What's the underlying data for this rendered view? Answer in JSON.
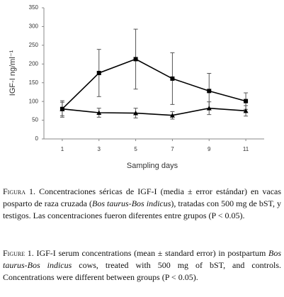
{
  "chart_data": {
    "type": "line",
    "y_label": "IGF-I ng/ml⁻¹",
    "x_label": "Sampling days",
    "x": [
      1,
      3,
      5,
      7,
      9,
      11
    ],
    "xlim": [
      0,
      12
    ],
    "xticks": [
      1,
      3,
      5,
      7,
      9,
      11
    ],
    "ylim": [
      0,
      350
    ],
    "yticks": [
      0,
      50,
      100,
      150,
      200,
      250,
      300,
      350
    ],
    "series": [
      {
        "color": "#000000",
        "marker": "square",
        "values": [
          80,
          176,
          213,
          161,
          128,
          101
        ],
        "errors": [
          22,
          63,
          80,
          69,
          47,
          22
        ]
      },
      {
        "color": "#000000",
        "marker": "triangle",
        "values": [
          80,
          70,
          69,
          63,
          82,
          75
        ],
        "errors": [
          18,
          12,
          13,
          10,
          17,
          14
        ]
      }
    ]
  },
  "captions": [
    {
      "label": "Figura 1.",
      "segments": [
        "Concentraciones séricas de IGF-I (media ± error estándar) en vacas posparto de raza cruzada (",
        "Bos taurus-Bos indicus",
        "), tratadas con 500 mg de bST, y testigos. Las concentraciones fueron diferentes entre grupos (P < 0.05)."
      ]
    },
    {
      "label": "Figure 1.",
      "segments": [
        "IGF-I serum concentrations (mean ± standard error) in postpartum ",
        "Bos taurus-Bos indicus",
        " cows, treated with 500 mg of bST, and controls. Concentrations were different between groups (P < 0.05)."
      ]
    }
  ]
}
